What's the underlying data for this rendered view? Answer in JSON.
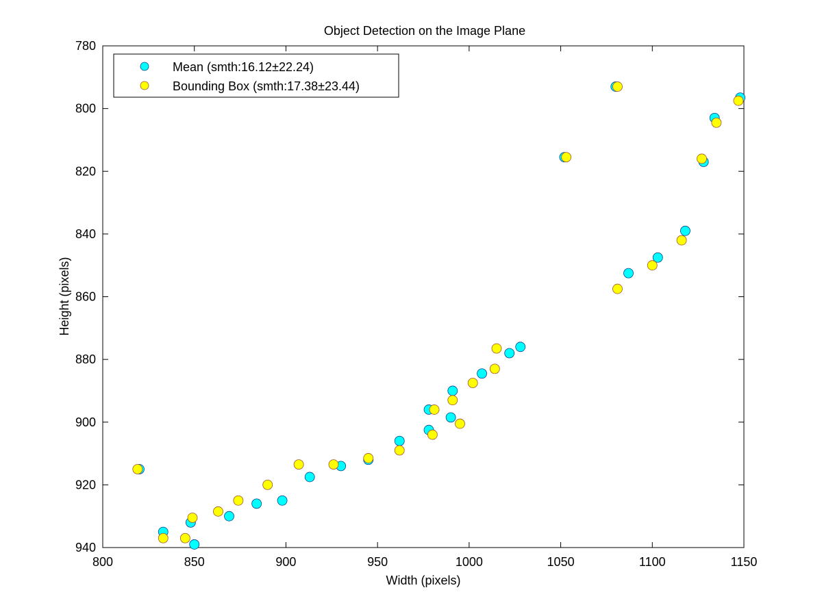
{
  "chart_data": {
    "type": "scatter",
    "title": "Object Detection on the Image Plane",
    "xlabel": "Width (pixels)",
    "ylabel": "Height (pixels)",
    "xlim": [
      800,
      1150
    ],
    "ylim": [
      780,
      940
    ],
    "y_reversed": true,
    "grid": false,
    "legend_position": "top-left",
    "xticks": [
      800,
      850,
      900,
      950,
      1000,
      1050,
      1100,
      1150
    ],
    "yticks": [
      780,
      800,
      820,
      840,
      860,
      880,
      900,
      920,
      940
    ],
    "series": [
      {
        "name": "Mean (smth:16.12±22.24)",
        "color": "#00ffff",
        "edge_color": "#0a3d8f",
        "points": [
          [
            820,
            915
          ],
          [
            833,
            935
          ],
          [
            848,
            932
          ],
          [
            850,
            939
          ],
          [
            869,
            930
          ],
          [
            884,
            926
          ],
          [
            898,
            925
          ],
          [
            913,
            917.5
          ],
          [
            930,
            914
          ],
          [
            945,
            912
          ],
          [
            962,
            906
          ],
          [
            978,
            896
          ],
          [
            978,
            902.5
          ],
          [
            990,
            898.5
          ],
          [
            991,
            890
          ],
          [
            1007,
            884.5
          ],
          [
            1022,
            878
          ],
          [
            1028,
            876
          ],
          [
            1052,
            815.5
          ],
          [
            1080,
            793
          ],
          [
            1087,
            852.5
          ],
          [
            1103,
            847.5
          ],
          [
            1118,
            839
          ],
          [
            1128,
            817
          ],
          [
            1134,
            803
          ],
          [
            1148,
            796.5
          ]
        ]
      },
      {
        "name": "Bounding Box (smth:17.38±23.44)",
        "color": "#ffff00",
        "edge_color": "#a0522d",
        "points": [
          [
            819,
            915
          ],
          [
            833,
            937
          ],
          [
            845,
            937
          ],
          [
            849,
            930.5
          ],
          [
            863,
            928.5
          ],
          [
            874,
            925
          ],
          [
            890,
            920
          ],
          [
            907,
            913.5
          ],
          [
            926,
            913.5
          ],
          [
            945,
            911.5
          ],
          [
            962,
            909
          ],
          [
            980,
            904
          ],
          [
            981,
            896
          ],
          [
            991,
            893
          ],
          [
            995,
            900.5
          ],
          [
            1002,
            887.5
          ],
          [
            1014,
            883
          ],
          [
            1015,
            876.5
          ],
          [
            1053,
            815.5
          ],
          [
            1081,
            793
          ],
          [
            1081,
            857.5
          ],
          [
            1100,
            850
          ],
          [
            1116,
            842
          ],
          [
            1127,
            816
          ],
          [
            1135,
            804.5
          ],
          [
            1147,
            797.5
          ]
        ]
      }
    ]
  }
}
